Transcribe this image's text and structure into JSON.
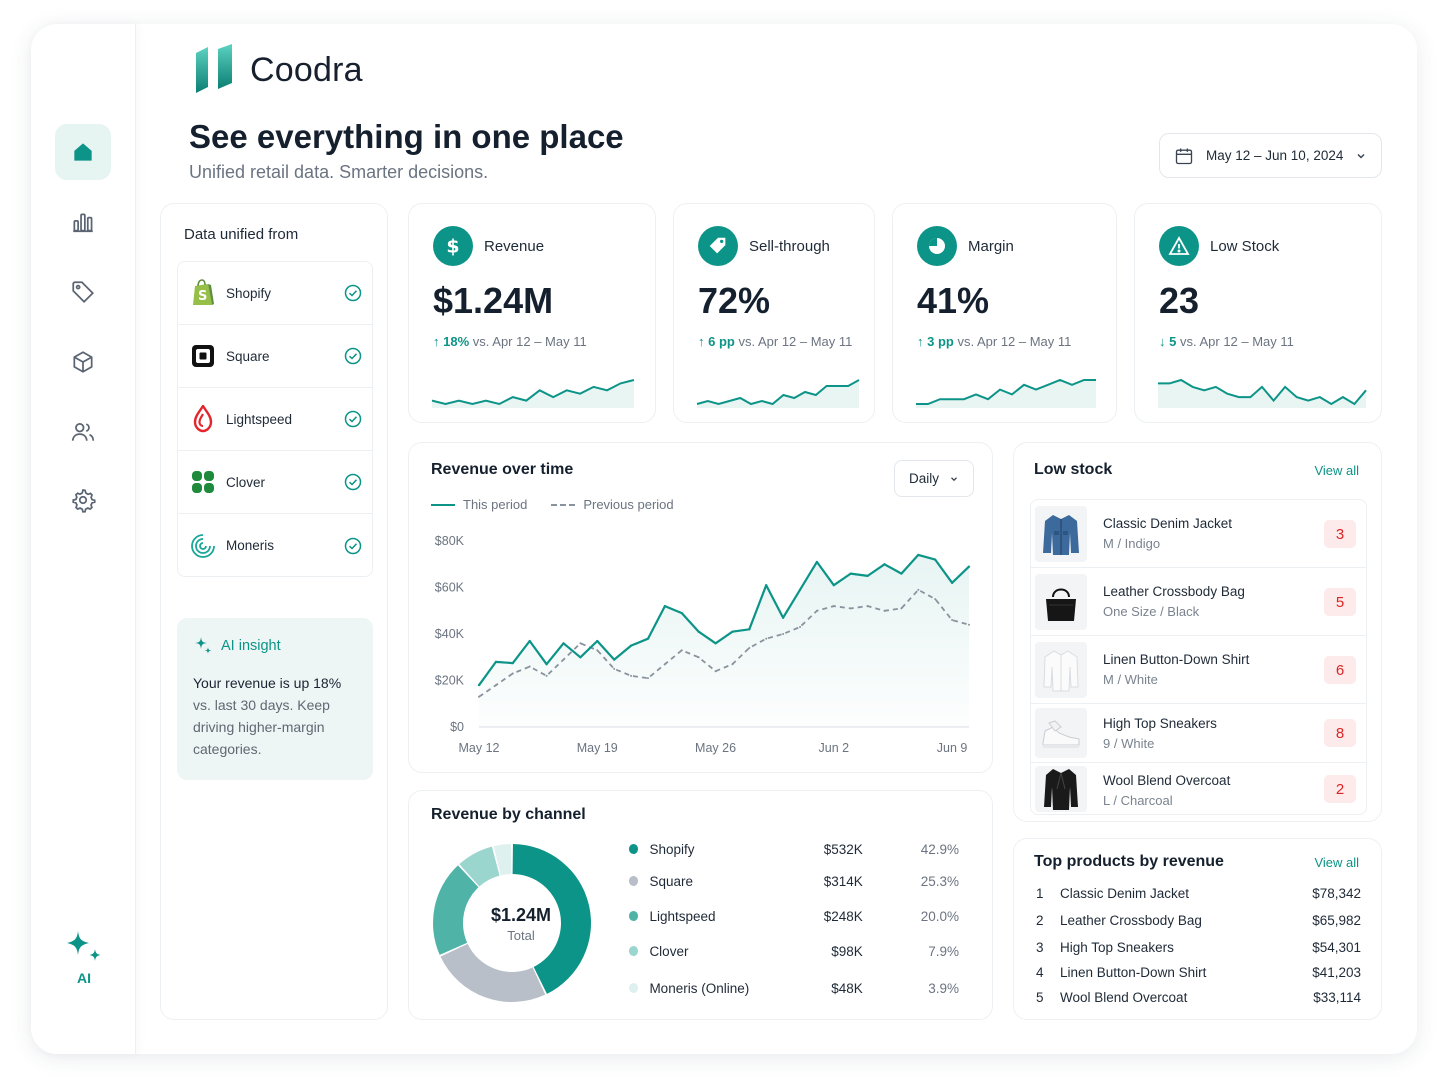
{
  "brand": {
    "name": "Coodra"
  },
  "header": {
    "title": "See everything in one place",
    "subtitle": "Unified retail data. Smarter decisions.",
    "date_range": "May 12 – Jun 10, 2024"
  },
  "sidebar": {
    "items": [
      {
        "icon": "home-icon",
        "active": true
      },
      {
        "icon": "bar-chart-icon"
      },
      {
        "icon": "tag-icon"
      },
      {
        "icon": "box-icon"
      },
      {
        "icon": "users-icon"
      },
      {
        "icon": "gear-icon"
      }
    ],
    "ai_label": "AI"
  },
  "sources": {
    "title": "Data unified from",
    "items": [
      {
        "name": "Shopify",
        "icon": "shopify-logo"
      },
      {
        "name": "Square",
        "icon": "square-logo"
      },
      {
        "name": "Lightspeed",
        "icon": "lightspeed-logo"
      },
      {
        "name": "Clover",
        "icon": "clover-logo"
      },
      {
        "name": "Moneris",
        "icon": "moneris-logo"
      }
    ]
  },
  "insight": {
    "label": "AI insight",
    "text_a": "Your revenue is up ",
    "text_b": "18%",
    "text_c": " vs. last 30 days. Keep driving higher-margin categories."
  },
  "kpis": [
    {
      "label": "Revenue",
      "icon": "dollar-icon",
      "value": "$1.24M",
      "arrow": "↑",
      "delta": "18%",
      "compare": " vs. Apr 12 – May 11",
      "trend": [
        9,
        8,
        9,
        8,
        9,
        8,
        10,
        9,
        12,
        10,
        12,
        11,
        13,
        12,
        14,
        15
      ]
    },
    {
      "label": "Sell-through",
      "icon": "tag-icon",
      "value": "72%",
      "arrow": "↑",
      "delta": "6 pp",
      "compare": " vs. Apr 12 – May 11",
      "trend": [
        6,
        7,
        6,
        7,
        8,
        6,
        7,
        6,
        9,
        8,
        10,
        9,
        12,
        12,
        12,
        14
      ]
    },
    {
      "label": "Margin",
      "icon": "pie-icon",
      "value": "41%",
      "arrow": "↑",
      "delta": "3 pp",
      "compare": " vs. Apr 12 – May 11",
      "trend": [
        7,
        7,
        8,
        8,
        8,
        9,
        8,
        10,
        9,
        11,
        10,
        11,
        12,
        11,
        12,
        12
      ]
    },
    {
      "label": "Low Stock",
      "icon": "warning-icon",
      "value": "23",
      "arrow": "↓",
      "delta": "5",
      "compare": " vs. Apr 12 – May 11",
      "trend": [
        14,
        14,
        15,
        13,
        12,
        13,
        11,
        10,
        10,
        13,
        9,
        13,
        10,
        9,
        10,
        8,
        10,
        8,
        12
      ]
    }
  ],
  "revenue_chart": {
    "title": "Revenue over time",
    "legend_current": "This period",
    "legend_previous": "Previous period",
    "granularity": "Daily",
    "chart_data": {
      "type": "line",
      "x": [
        "May 12",
        "May 13",
        "May 14",
        "May 15",
        "May 16",
        "May 17",
        "May 18",
        "May 19",
        "May 20",
        "May 21",
        "May 22",
        "May 23",
        "May 24",
        "May 25",
        "May 26",
        "May 27",
        "May 28",
        "May 29",
        "May 30",
        "May 31",
        "Jun 1",
        "Jun 2",
        "Jun 3",
        "Jun 4",
        "Jun 5",
        "Jun 6",
        "Jun 7",
        "Jun 8",
        "Jun 9",
        "Jun 10"
      ],
      "x_ticks": [
        "May 12",
        "May 19",
        "May 26",
        "Jun 2",
        "Jun 9"
      ],
      "y_ticks": [
        "$80K",
        "$60K",
        "$40K",
        "$20K",
        "$0"
      ],
      "ylim": [
        0,
        80000
      ],
      "series": [
        {
          "name": "This period",
          "color": "#0d9488",
          "values": [
            18000,
            28000,
            27500,
            37000,
            27000,
            36000,
            30000,
            37000,
            29000,
            35000,
            38000,
            52000,
            49000,
            41000,
            36000,
            41000,
            42000,
            61000,
            47000,
            59000,
            71000,
            61000,
            66000,
            65000,
            70000,
            66000,
            74000,
            72000,
            62000,
            69000
          ]
        },
        {
          "name": "Previous period",
          "color": "#8a939d",
          "values": [
            13000,
            18000,
            23000,
            26000,
            22000,
            29000,
            36000,
            33000,
            25000,
            22000,
            21000,
            27000,
            33000,
            30000,
            24000,
            27000,
            34000,
            38000,
            40000,
            43000,
            50000,
            52000,
            51000,
            52000,
            50000,
            51000,
            59000,
            55000,
            46000,
            44000
          ]
        }
      ]
    }
  },
  "channels": {
    "title": "Revenue by channel",
    "total_value": "$1.24M",
    "total_label": "Total",
    "chart_data": {
      "type": "pie",
      "labels": [
        "Shopify",
        "Square",
        "Lightspeed",
        "Clover",
        "Moneris (Online)"
      ],
      "display_values": [
        "$532K",
        "$314K",
        "$248K",
        "$98K",
        "$48K"
      ],
      "percent_labels": [
        "42.9%",
        "25.3%",
        "20.0%",
        "7.9%",
        "3.9%"
      ],
      "values": [
        42.9,
        25.3,
        20.0,
        7.9,
        3.9
      ],
      "colors": [
        "#0d9488",
        "#b9bfc8",
        "#4fb3a7",
        "#9ad6ce",
        "#dff1ee"
      ]
    }
  },
  "low_stock": {
    "title": "Low stock",
    "view_all": "View all",
    "items": [
      {
        "name": "Classic Denim Jacket",
        "variant": "M / Indigo",
        "qty": "3",
        "icon": "jacket-icon"
      },
      {
        "name": "Leather Crossbody Bag",
        "variant": "One Size / Black",
        "qty": "5",
        "icon": "bag-icon"
      },
      {
        "name": "Linen Button-Down Shirt",
        "variant": "M / White",
        "qty": "6",
        "icon": "shirt-icon"
      },
      {
        "name": "High Top Sneakers",
        "variant": "9 / White",
        "qty": "8",
        "icon": "sneaker-icon"
      },
      {
        "name": "Wool Blend Overcoat",
        "variant": "L / Charcoal",
        "qty": "2",
        "icon": "coat-icon"
      }
    ]
  },
  "top_products": {
    "title": "Top products by revenue",
    "view_all": "View all",
    "items": [
      {
        "rank": "1",
        "name": "Classic Denim Jacket",
        "revenue": "$78,342"
      },
      {
        "rank": "2",
        "name": "Leather Crossbody Bag",
        "revenue": "$65,982"
      },
      {
        "rank": "3",
        "name": "High Top Sneakers",
        "revenue": "$54,301"
      },
      {
        "rank": "4",
        "name": "Linen Button-Down Shirt",
        "revenue": "$41,203"
      },
      {
        "rank": "5",
        "name": "Wool Blend Overcoat",
        "revenue": "$33,114"
      }
    ]
  },
  "colors": {
    "accent": "#0d9488",
    "danger": "#dc2626",
    "text": "#15202e",
    "muted": "#6b7480"
  }
}
